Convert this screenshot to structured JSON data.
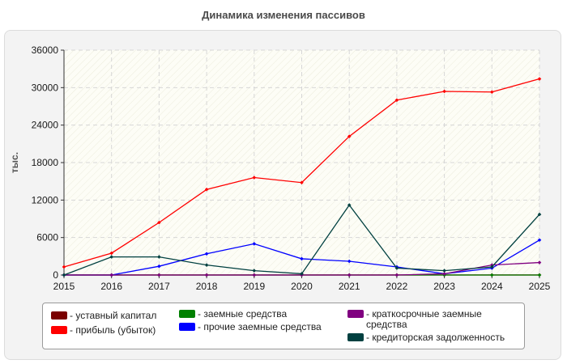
{
  "title": "Динамика изменения пассивов",
  "chart_data": {
    "type": "line",
    "ylabel": "тыс.",
    "xlabel": "",
    "ylim": [
      0,
      36000
    ],
    "yticks": [
      0,
      6000,
      12000,
      18000,
      24000,
      30000,
      36000
    ],
    "ytick_labels": [
      "0",
      "6000",
      "12000",
      "18000",
      "24000",
      "30000",
      "36000"
    ],
    "x": [
      "2015",
      "2016",
      "2017",
      "2018",
      "2019",
      "2020",
      "2021",
      "2022",
      "2023",
      "2024",
      "2025"
    ],
    "grid": true,
    "legend_position": "bottom",
    "series": [
      {
        "name": "- уставный капитал",
        "color": "#7a0000",
        "values": [
          10,
          10,
          10,
          10,
          10,
          10,
          10,
          10,
          10,
          10,
          10
        ]
      },
      {
        "name": "- прибыль (убыток)",
        "color": "#ff0000",
        "values": [
          1300,
          3500,
          8400,
          13700,
          15600,
          14800,
          22200,
          28000,
          29400,
          29300,
          31400
        ]
      },
      {
        "name": "- заемные средства",
        "color": "#008000",
        "values": [
          0,
          0,
          0,
          0,
          0,
          0,
          0,
          0,
          0,
          0,
          0
        ]
      },
      {
        "name": "- прочие заемные средства",
        "color": "#0000ff",
        "values": [
          0,
          0,
          1400,
          3400,
          5000,
          2600,
          2200,
          1300,
          200,
          1100,
          5600
        ]
      },
      {
        "name": "- краткосрочные заемные средства",
        "color": "#800080",
        "values": [
          0,
          0,
          0,
          0,
          0,
          0,
          0,
          0,
          200,
          1600,
          2000
        ]
      },
      {
        "name": "- кредиторская задолженность",
        "color": "#004040",
        "values": [
          0,
          2900,
          2900,
          1600,
          700,
          200,
          11200,
          1100,
          700,
          1300,
          9700
        ]
      }
    ]
  }
}
